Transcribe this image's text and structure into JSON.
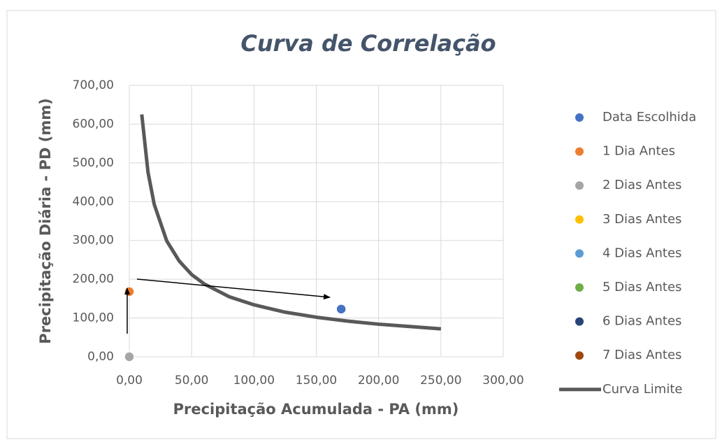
{
  "chart_data": {
    "type": "scatter",
    "title": "Curva de Correlação",
    "x_label": "Precipitação Acumulada - PA (mm)",
    "y_label": "Precipitação Diária - PD (mm)",
    "xlim": [
      0,
      300
    ],
    "ylim": [
      0,
      700
    ],
    "xticks": [
      {
        "value": 0,
        "label": "0,00"
      },
      {
        "value": 50,
        "label": "50,00"
      },
      {
        "value": 100,
        "label": "100,00"
      },
      {
        "value": 150,
        "label": "150,00"
      },
      {
        "value": 200,
        "label": "200,00"
      },
      {
        "value": 250,
        "label": "250,00"
      },
      {
        "value": 300,
        "label": "300,00"
      }
    ],
    "yticks": [
      {
        "value": 0,
        "label": "0,00"
      },
      {
        "value": 100,
        "label": "100,00"
      },
      {
        "value": 200,
        "label": "200,00"
      },
      {
        "value": 300,
        "label": "300,00"
      },
      {
        "value": 400,
        "label": "400,00"
      },
      {
        "value": 500,
        "label": "500,00"
      },
      {
        "value": 600,
        "label": "600,00"
      },
      {
        "value": 700,
        "label": "700,00"
      }
    ],
    "grid": true,
    "legend": "right",
    "series": [
      {
        "name": "Data Escolhida",
        "color": "#4472c4",
        "x": [
          170
        ],
        "values": [
          123
        ]
      },
      {
        "name": "1 Dia Antes",
        "color": "#ed7d31",
        "x": [
          0
        ],
        "values": [
          168
        ]
      },
      {
        "name": "2 Dias Antes",
        "color": "#a5a5a5",
        "x": [
          0
        ],
        "values": [
          0
        ]
      },
      {
        "name": "3 Dias Antes",
        "color": "#ffc000",
        "x": [],
        "values": []
      },
      {
        "name": "4 Dias Antes",
        "color": "#5b9bd5",
        "x": [],
        "values": []
      },
      {
        "name": "5 Dias Antes",
        "color": "#70ad47",
        "x": [],
        "values": []
      },
      {
        "name": "6 Dias Antes",
        "color": "#264478",
        "x": [],
        "values": []
      },
      {
        "name": "7 Dias Antes",
        "color": "#9e480e",
        "x": [],
        "values": []
      },
      {
        "name": "Curva Limite",
        "type": "line",
        "color": "#595959",
        "x": [
          10,
          15,
          20,
          30,
          40,
          50,
          60,
          80,
          100,
          125,
          150,
          175,
          200,
          225,
          250
        ],
        "values": [
          625,
          476,
          393,
          299,
          247,
          212,
          188,
          155,
          134,
          115,
          102,
          92,
          84,
          78,
          72
        ]
      }
    ]
  }
}
